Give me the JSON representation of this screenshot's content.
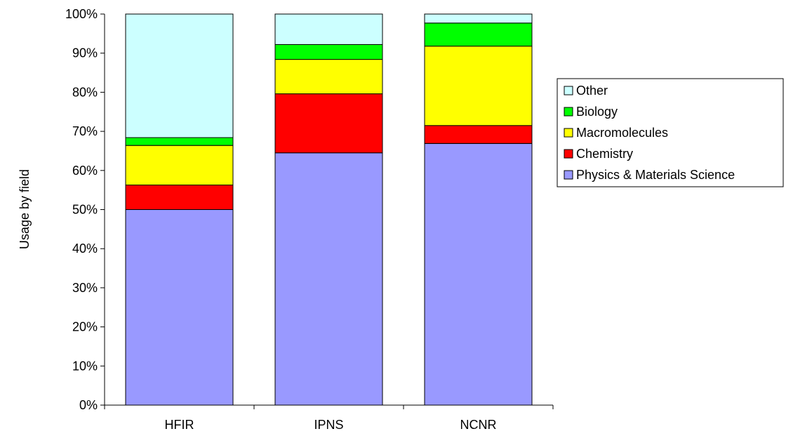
{
  "chart_data": {
    "type": "bar",
    "stacked": true,
    "percent": true,
    "categories": [
      "HFIR",
      "IPNS",
      "NCNR"
    ],
    "series": [
      {
        "name": "Physics & Materials Science",
        "color": "#9999ff",
        "values": [
          50.0,
          64.5,
          66.9
        ]
      },
      {
        "name": "Chemistry",
        "color": "#ff0000",
        "values": [
          6.3,
          15.1,
          4.6
        ]
      },
      {
        "name": "Macromolecules",
        "color": "#ffff00",
        "values": [
          10.1,
          8.8,
          20.3
        ]
      },
      {
        "name": "Biology",
        "color": "#00ff00",
        "values": [
          2.0,
          3.8,
          5.9
        ]
      },
      {
        "name": "Other",
        "color": "#ccffff",
        "values": [
          31.6,
          7.8,
          2.3
        ]
      }
    ],
    "ylabel": "Usage by field",
    "xlabel": "",
    "ylim": [
      0,
      100
    ],
    "yticks": [
      "0%",
      "10%",
      "20%",
      "30%",
      "40%",
      "50%",
      "60%",
      "70%",
      "80%",
      "90%",
      "100%"
    ],
    "legend_position": "right",
    "legend_order": [
      "Other",
      "Biology",
      "Macromolecules",
      "Chemistry",
      "Physics & Materials Science"
    ],
    "grid": false
  }
}
